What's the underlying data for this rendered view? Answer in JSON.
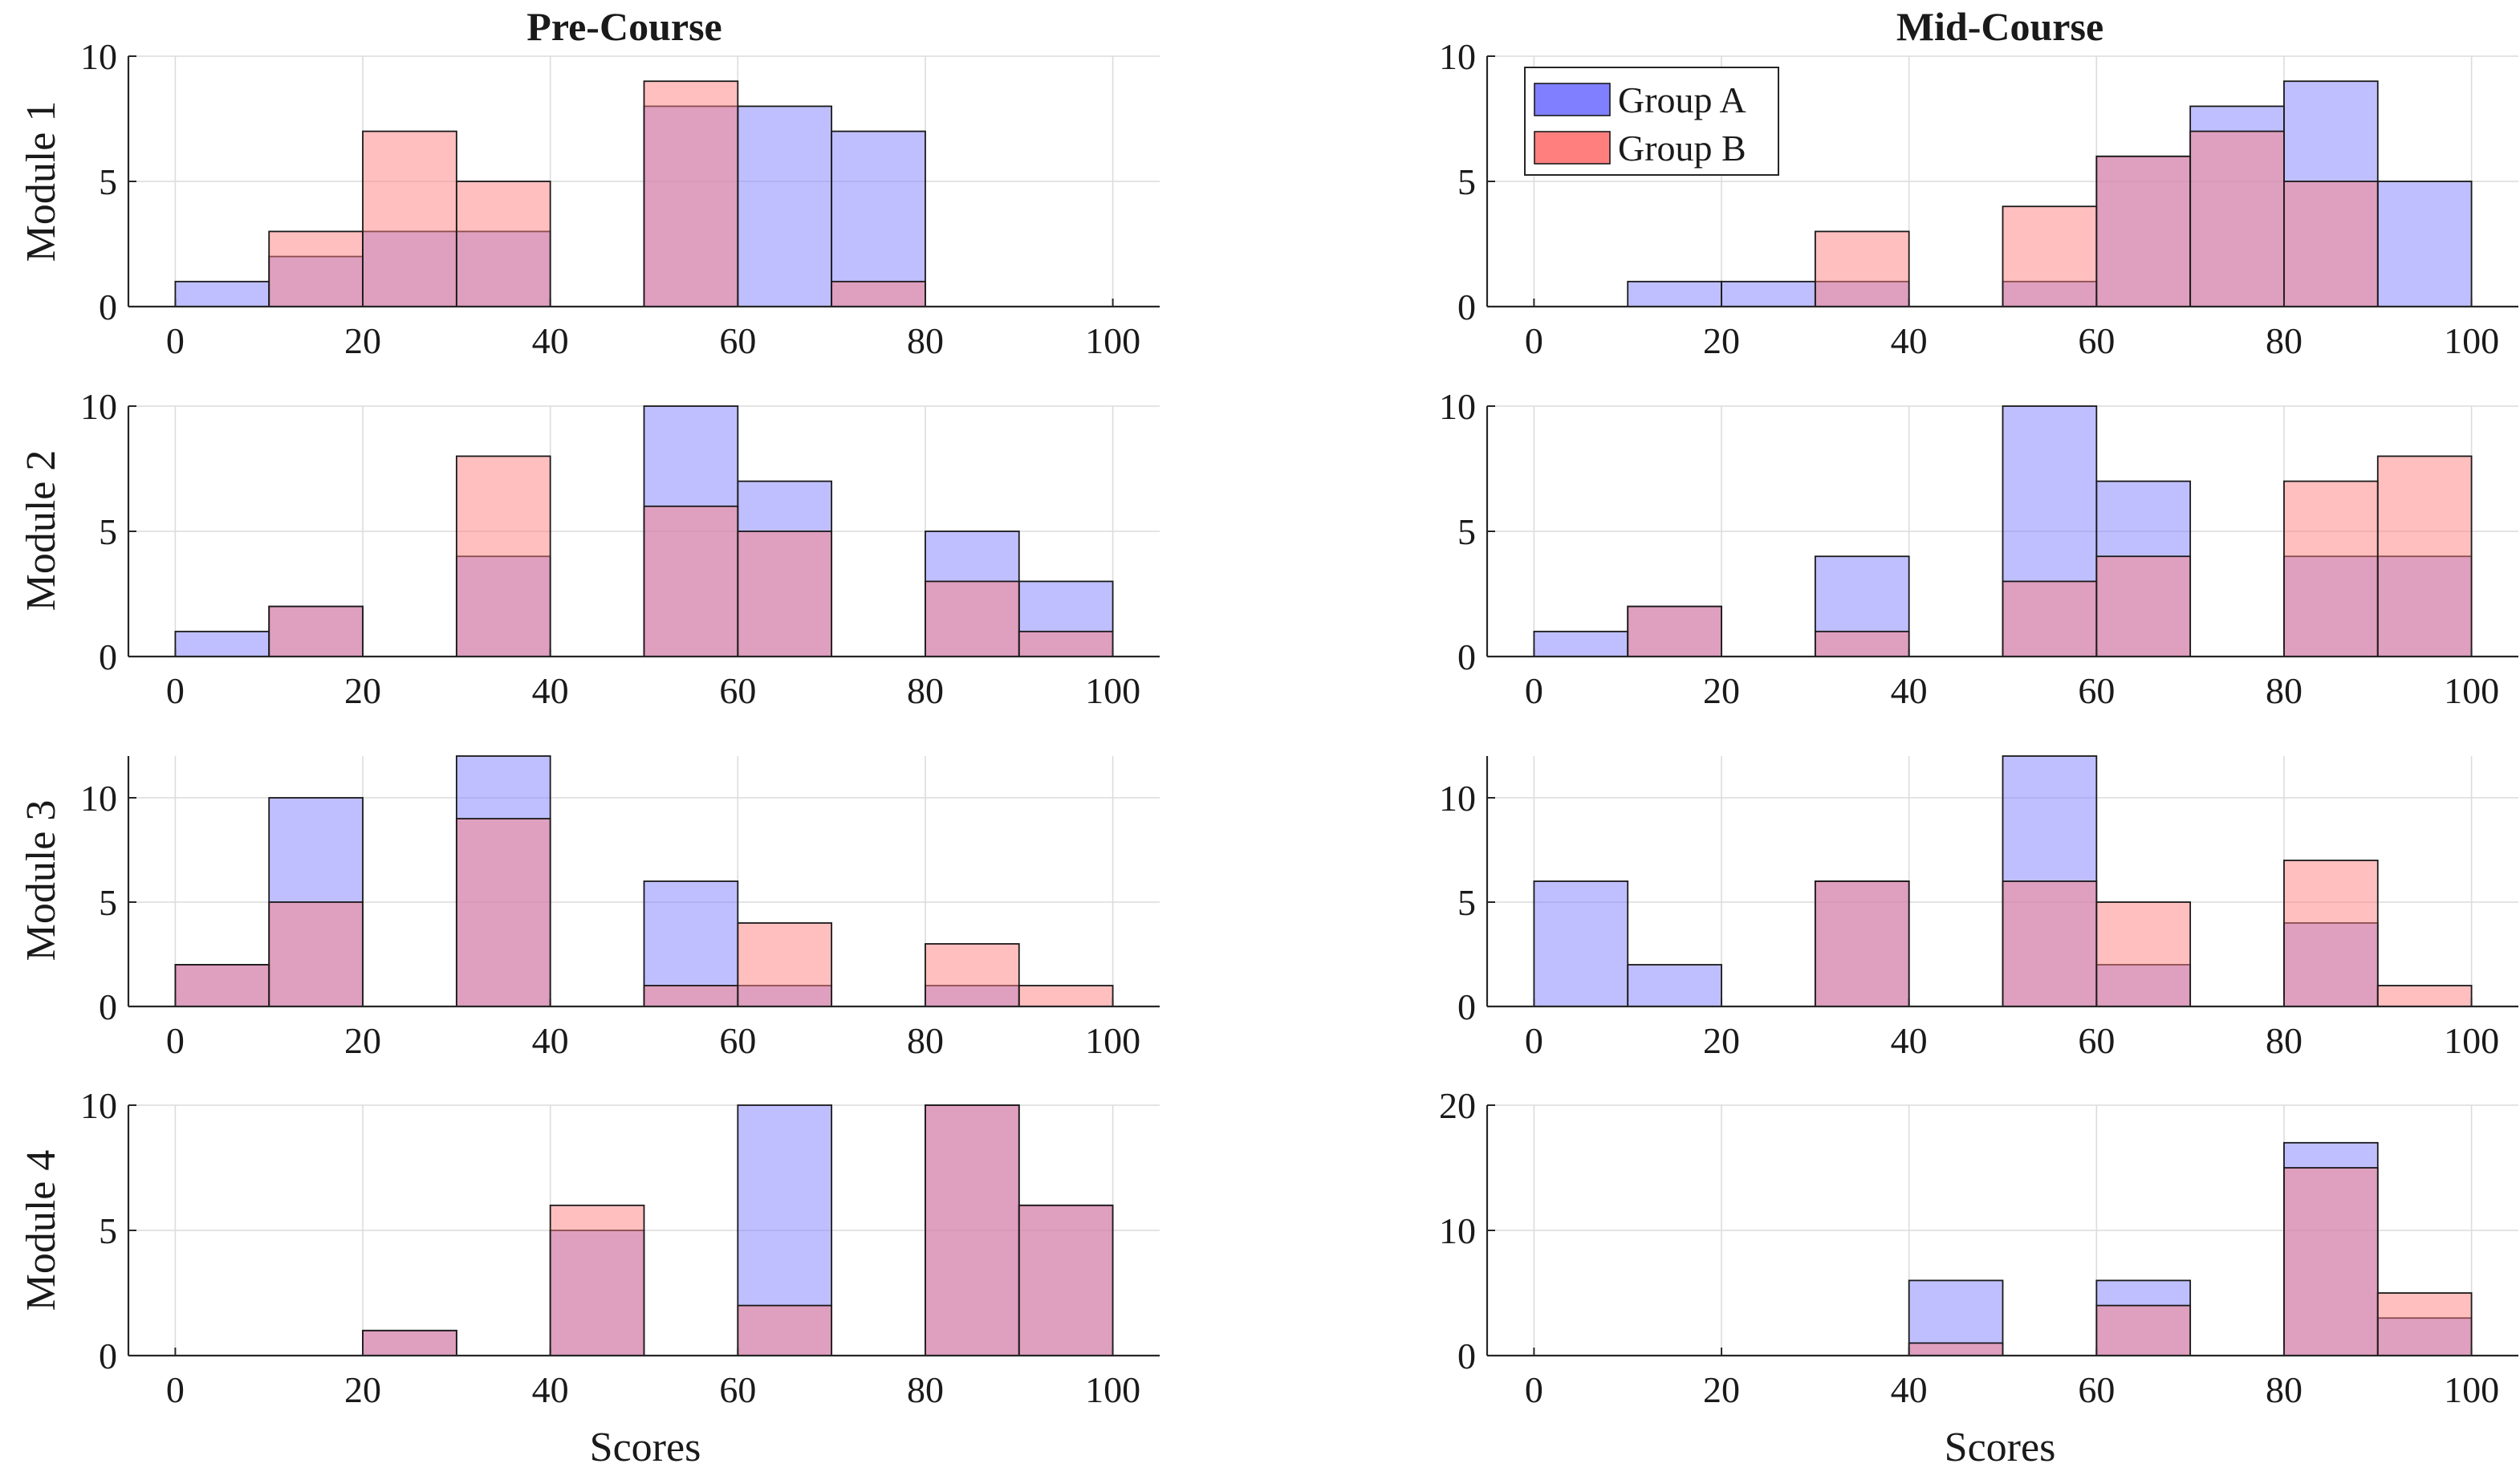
{
  "figure": {
    "column_titles": [
      "Pre-Course",
      "Mid-Course"
    ],
    "row_labels": [
      "Module 1",
      "Module 2",
      "Module 3",
      "Module 4"
    ],
    "x_axis_label": "Scores",
    "legend": [
      "Group A",
      "Group B"
    ],
    "colors": {
      "Group A": "#7f7fff",
      "Group B": "#ff7f7f",
      "overlap": "#bf3f7f",
      "edge": "#1a1a1a"
    }
  },
  "chart_data": [
    {
      "type": "bar",
      "histogram": true,
      "column": "Pre-Course",
      "row": "Module 1",
      "bin_edges": [
        0,
        10,
        20,
        30,
        40,
        50,
        60,
        70,
        80,
        90,
        100
      ],
      "series": [
        {
          "name": "Group A",
          "values": [
            1,
            2,
            3,
            3,
            0,
            8,
            8,
            7,
            0,
            0
          ]
        },
        {
          "name": "Group B",
          "values": [
            0,
            3,
            7,
            5,
            0,
            9,
            0,
            1,
            0,
            0
          ]
        }
      ],
      "xlim": [
        -5,
        105
      ],
      "xticks": [
        0,
        20,
        40,
        60,
        80,
        100
      ],
      "ylim": [
        0,
        10
      ],
      "yticks": [
        0,
        5,
        10
      ],
      "grid": true
    },
    {
      "type": "bar",
      "histogram": true,
      "column": "Mid-Course",
      "row": "Module 1",
      "bin_edges": [
        0,
        10,
        20,
        30,
        40,
        50,
        60,
        70,
        80,
        90,
        100
      ],
      "series": [
        {
          "name": "Group A",
          "values": [
            0,
            1,
            1,
            1,
            0,
            1,
            6,
            8,
            9,
            5
          ]
        },
        {
          "name": "Group B",
          "values": [
            0,
            0,
            0,
            3,
            0,
            4,
            6,
            7,
            5,
            0
          ]
        }
      ],
      "xlim": [
        -5,
        105
      ],
      "xticks": [
        0,
        20,
        40,
        60,
        80,
        100
      ],
      "ylim": [
        0,
        10
      ],
      "yticks": [
        0,
        5,
        10
      ],
      "grid": true,
      "legend_position": "top-left"
    },
    {
      "type": "bar",
      "histogram": true,
      "column": "Pre-Course",
      "row": "Module 2",
      "bin_edges": [
        0,
        10,
        20,
        30,
        40,
        50,
        60,
        70,
        80,
        90,
        100
      ],
      "series": [
        {
          "name": "Group A",
          "values": [
            1,
            2,
            0,
            4,
            0,
            10,
            7,
            0,
            5,
            3
          ]
        },
        {
          "name": "Group B",
          "values": [
            0,
            2,
            0,
            8,
            0,
            6,
            5,
            0,
            3,
            1
          ]
        }
      ],
      "xlim": [
        -5,
        105
      ],
      "xticks": [
        0,
        20,
        40,
        60,
        80,
        100
      ],
      "ylim": [
        0,
        10
      ],
      "yticks": [
        0,
        5,
        10
      ],
      "grid": true
    },
    {
      "type": "bar",
      "histogram": true,
      "column": "Mid-Course",
      "row": "Module 2",
      "bin_edges": [
        0,
        10,
        20,
        30,
        40,
        50,
        60,
        70,
        80,
        90,
        100
      ],
      "series": [
        {
          "name": "Group A",
          "values": [
            1,
            2,
            0,
            4,
            0,
            10,
            7,
            0,
            4,
            4
          ]
        },
        {
          "name": "Group B",
          "values": [
            0,
            2,
            0,
            1,
            0,
            3,
            4,
            0,
            7,
            8
          ]
        }
      ],
      "xlim": [
        -5,
        105
      ],
      "xticks": [
        0,
        20,
        40,
        60,
        80,
        100
      ],
      "ylim": [
        0,
        10
      ],
      "yticks": [
        0,
        5,
        10
      ],
      "grid": true
    },
    {
      "type": "bar",
      "histogram": true,
      "column": "Pre-Course",
      "row": "Module 3",
      "bin_edges": [
        0,
        10,
        20,
        30,
        40,
        50,
        60,
        70,
        80,
        90,
        100
      ],
      "series": [
        {
          "name": "Group A",
          "values": [
            2,
            10,
            0,
            12,
            0,
            6,
            1,
            0,
            1,
            0
          ]
        },
        {
          "name": "Group B",
          "values": [
            2,
            5,
            0,
            9,
            0,
            1,
            4,
            0,
            3,
            1
          ]
        }
      ],
      "xlim": [
        -5,
        105
      ],
      "xticks": [
        0,
        20,
        40,
        60,
        80,
        100
      ],
      "ylim": [
        0,
        12
      ],
      "yticks": [
        0,
        5,
        10
      ],
      "grid": true
    },
    {
      "type": "bar",
      "histogram": true,
      "column": "Mid-Course",
      "row": "Module 3",
      "bin_edges": [
        0,
        10,
        20,
        30,
        40,
        50,
        60,
        70,
        80,
        90,
        100
      ],
      "series": [
        {
          "name": "Group A",
          "values": [
            6,
            2,
            0,
            6,
            0,
            12,
            2,
            0,
            4,
            0
          ]
        },
        {
          "name": "Group B",
          "values": [
            0,
            0,
            0,
            6,
            0,
            6,
            5,
            0,
            7,
            1
          ]
        }
      ],
      "xlim": [
        -5,
        105
      ],
      "xticks": [
        0,
        20,
        40,
        60,
        80,
        100
      ],
      "ylim": [
        0,
        12
      ],
      "yticks": [
        0,
        5,
        10
      ],
      "grid": true
    },
    {
      "type": "bar",
      "histogram": true,
      "column": "Pre-Course",
      "row": "Module 4",
      "bin_edges": [
        0,
        10,
        20,
        30,
        40,
        50,
        60,
        70,
        80,
        90,
        100
      ],
      "series": [
        {
          "name": "Group A",
          "values": [
            0,
            0,
            1,
            0,
            5,
            0,
            10,
            0,
            10,
            6
          ]
        },
        {
          "name": "Group B",
          "values": [
            0,
            0,
            1,
            0,
            6,
            0,
            2,
            0,
            10,
            6
          ]
        }
      ],
      "xlim": [
        -5,
        105
      ],
      "xticks": [
        0,
        20,
        40,
        60,
        80,
        100
      ],
      "ylim": [
        0,
        10
      ],
      "yticks": [
        0,
        5,
        10
      ],
      "grid": true
    },
    {
      "type": "bar",
      "histogram": true,
      "column": "Mid-Course",
      "row": "Module 4",
      "bin_edges": [
        0,
        10,
        20,
        30,
        40,
        50,
        60,
        70,
        80,
        90,
        100
      ],
      "series": [
        {
          "name": "Group A",
          "values": [
            0,
            0,
            0,
            0,
            6,
            0,
            6,
            0,
            17,
            3
          ]
        },
        {
          "name": "Group B",
          "values": [
            0,
            0,
            0,
            0,
            1,
            0,
            4,
            0,
            15,
            5
          ]
        }
      ],
      "xlim": [
        -5,
        105
      ],
      "xticks": [
        0,
        20,
        40,
        60,
        80,
        100
      ],
      "ylim": [
        0,
        20
      ],
      "yticks": [
        0,
        10,
        20
      ],
      "grid": true
    }
  ]
}
